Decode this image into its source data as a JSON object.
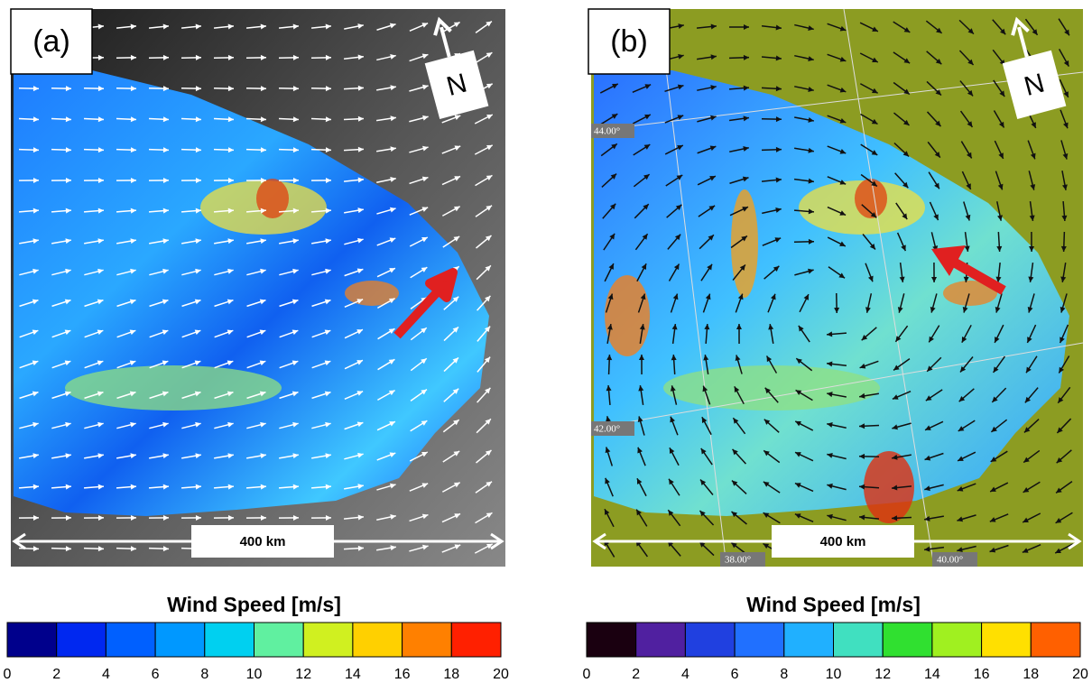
{
  "panels": [
    {
      "label": "(a)",
      "north": "N",
      "scale_label": "400 km",
      "arrow_color": "#ffffff",
      "colorbar": {
        "title": "Wind Speed [m/s]",
        "ticks": [
          0,
          2,
          4,
          6,
          8,
          10,
          12,
          14,
          16,
          18,
          20
        ],
        "colors": [
          "#00008c",
          "#0028f0",
          "#0060ff",
          "#0098ff",
          "#00d0f0",
          "#60f0a0",
          "#d0f020",
          "#ffd000",
          "#ff8000",
          "#ff2000"
        ]
      }
    },
    {
      "label": "(b)",
      "north": "N",
      "scale_label": "400 km",
      "arrow_color": "#111111",
      "lat_labels": [
        "44.00°",
        "42.00°"
      ],
      "lon_labels": [
        "38.00°",
        "40.00°"
      ],
      "colorbar": {
        "title": "Wind Speed [m/s]",
        "ticks": [
          0,
          2,
          4,
          6,
          8,
          10,
          12,
          14,
          16,
          18,
          20
        ],
        "colors": [
          "#1a0010",
          "#5020a0",
          "#2040e0",
          "#2070ff",
          "#20b0ff",
          "#40e0c0",
          "#30e030",
          "#a0f020",
          "#ffe000",
          "#ff6000"
        ]
      }
    }
  ]
}
